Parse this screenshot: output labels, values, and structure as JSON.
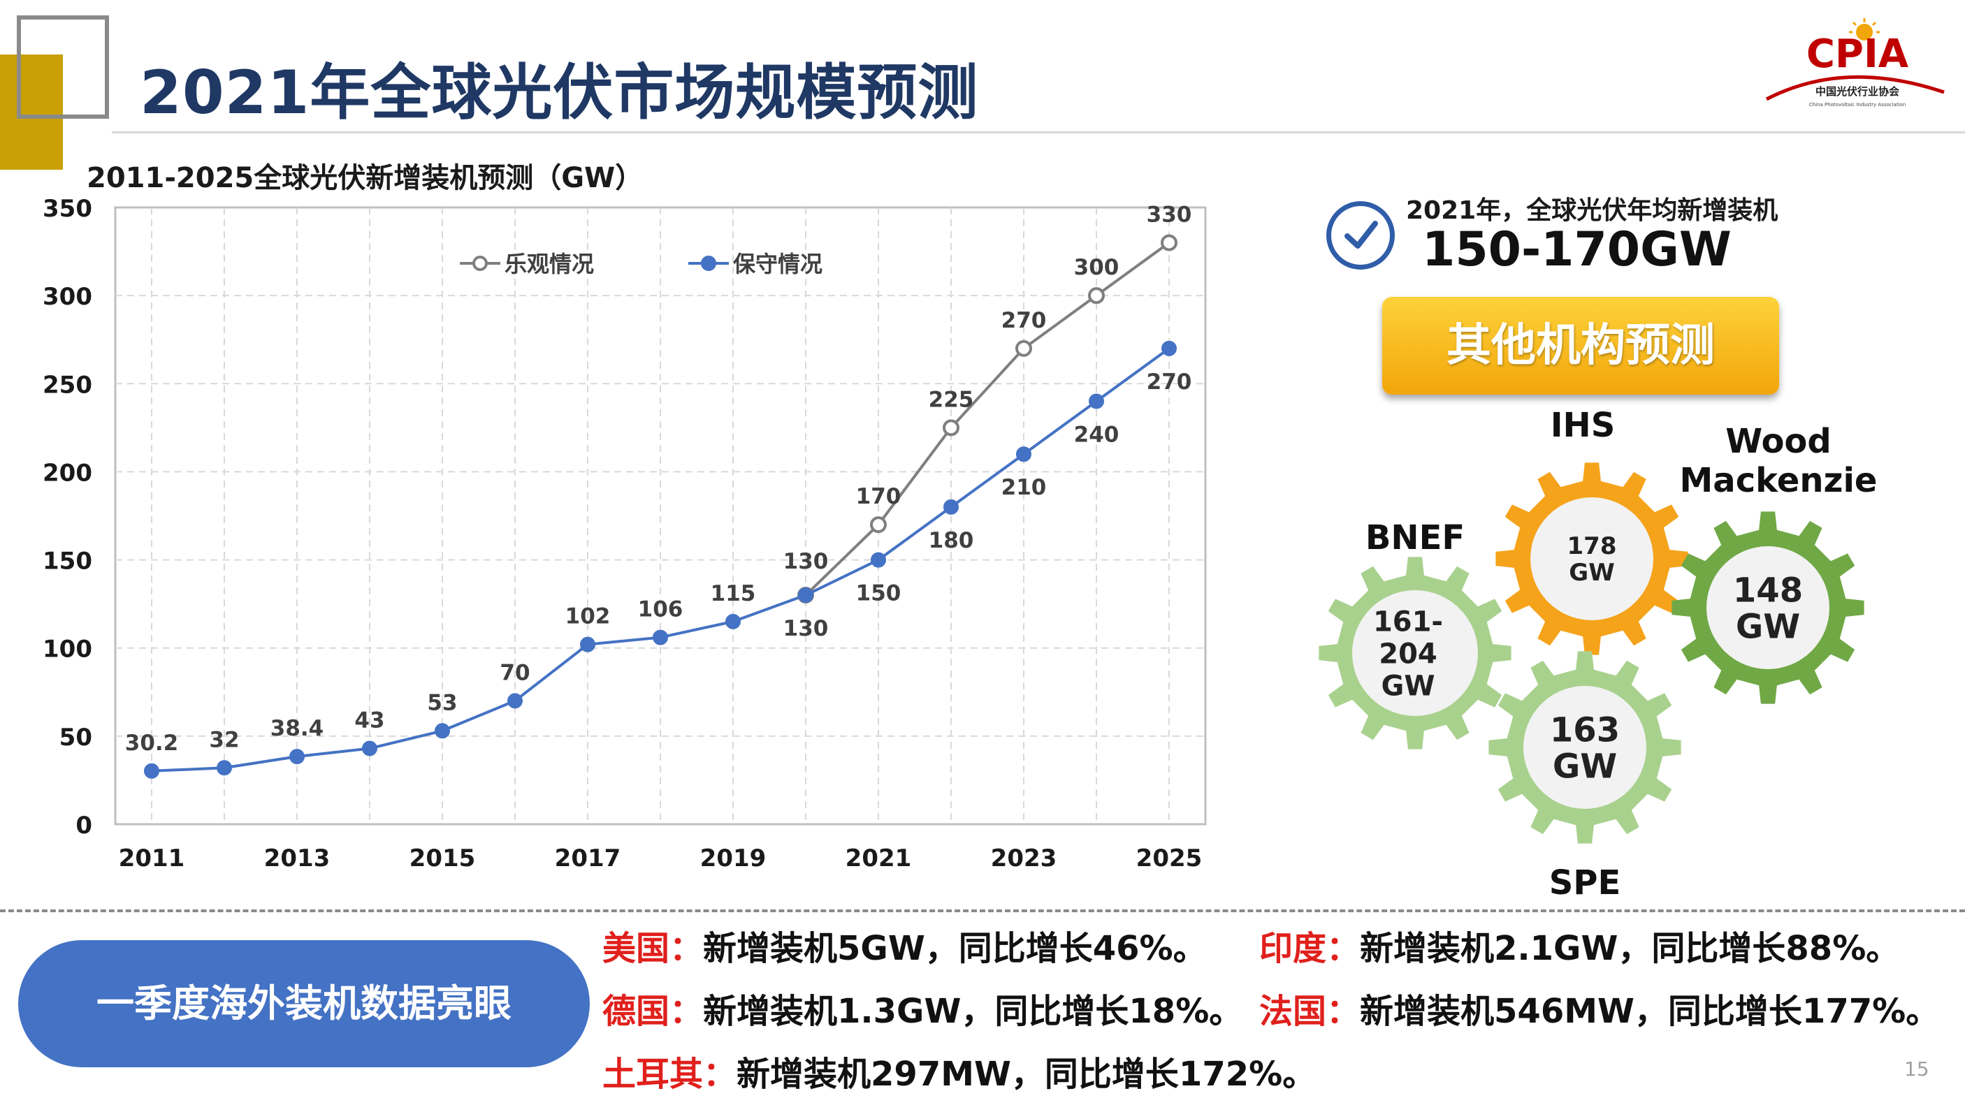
{
  "header": {
    "title": "2021年全球光伏市场规模预测",
    "logo_text": "CPIA",
    "logo_sub_cn": "中国光伏行业协会",
    "logo_sub_en": "China Photovoltaic Industry Association"
  },
  "chart_title": "2011-2025全球光伏新增装机预测（GW）",
  "chart_data": {
    "type": "line",
    "title": "2011-2025全球光伏新增装机预测（GW）",
    "x": [
      2011,
      2012,
      2013,
      2014,
      2015,
      2016,
      2017,
      2018,
      2019,
      2020,
      2021,
      2022,
      2023,
      2024,
      2025
    ],
    "x_tick_labels": [
      "2011",
      "2013",
      "2015",
      "2017",
      "2019",
      "2021",
      "2023",
      "2025"
    ],
    "y_tick_labels": [
      "0",
      "50",
      "100",
      "150",
      "200",
      "250",
      "300",
      "350"
    ],
    "ylim": [
      0,
      350
    ],
    "grid": true,
    "legend_position": "top-center",
    "series": [
      {
        "name": "乐观情况",
        "color": "#7f7f7f",
        "marker": "open-circle",
        "x": [
          2020,
          2021,
          2022,
          2023,
          2024,
          2025
        ],
        "values": [
          130,
          170,
          225,
          270,
          300,
          330
        ],
        "labels": [
          "130",
          "170",
          "225",
          "270",
          "300",
          "330"
        ]
      },
      {
        "name": "保守情况",
        "color": "#4472c4",
        "marker": "filled-circle",
        "x": [
          2011,
          2012,
          2013,
          2014,
          2015,
          2016,
          2017,
          2018,
          2019,
          2020,
          2021,
          2022,
          2023,
          2024,
          2025
        ],
        "values": [
          30.2,
          32,
          38.4,
          43,
          53,
          70,
          102,
          106,
          115,
          130,
          150,
          180,
          210,
          240,
          270
        ],
        "labels": [
          "30.2",
          "32",
          "38.4",
          "43",
          "53",
          "70",
          "102",
          "106",
          "115",
          "130",
          "150",
          "180",
          "210",
          "240",
          "270"
        ]
      }
    ]
  },
  "right_panel": {
    "subhead": "2021年，全球光伏年均新增装机",
    "range": "150-170GW",
    "button_label": "其他机构预测",
    "gears": [
      {
        "org": "IHS",
        "value_lines": [
          "178",
          "GW"
        ],
        "color": "#f5a31a"
      },
      {
        "org": "Wood Mackenzie",
        "value_lines": [
          "148",
          "GW"
        ],
        "color": "#70a846"
      },
      {
        "org": "BNEF",
        "value_lines": [
          "161-",
          "204",
          "GW"
        ],
        "color": "#a9d18e"
      },
      {
        "org": "SPE",
        "value_lines": [
          "163",
          "GW"
        ],
        "color": "#a9d18e"
      }
    ]
  },
  "bottom": {
    "pill_label": "一季度海外装机数据亮眼",
    "notes": [
      {
        "country": "美国：",
        "text": "新增装机5GW，同比增长46%。"
      },
      {
        "country": "印度：",
        "text": "新增装机2.1GW，同比增长88%。"
      },
      {
        "country": "德国：",
        "text": "新增装机1.3GW，同比增长18%。"
      },
      {
        "country": "法国：",
        "text": "新增装机546MW，同比增长177%。"
      },
      {
        "country": "土耳其：",
        "text": "新增装机297MW，同比增长172%。"
      }
    ],
    "page_number": "15"
  }
}
